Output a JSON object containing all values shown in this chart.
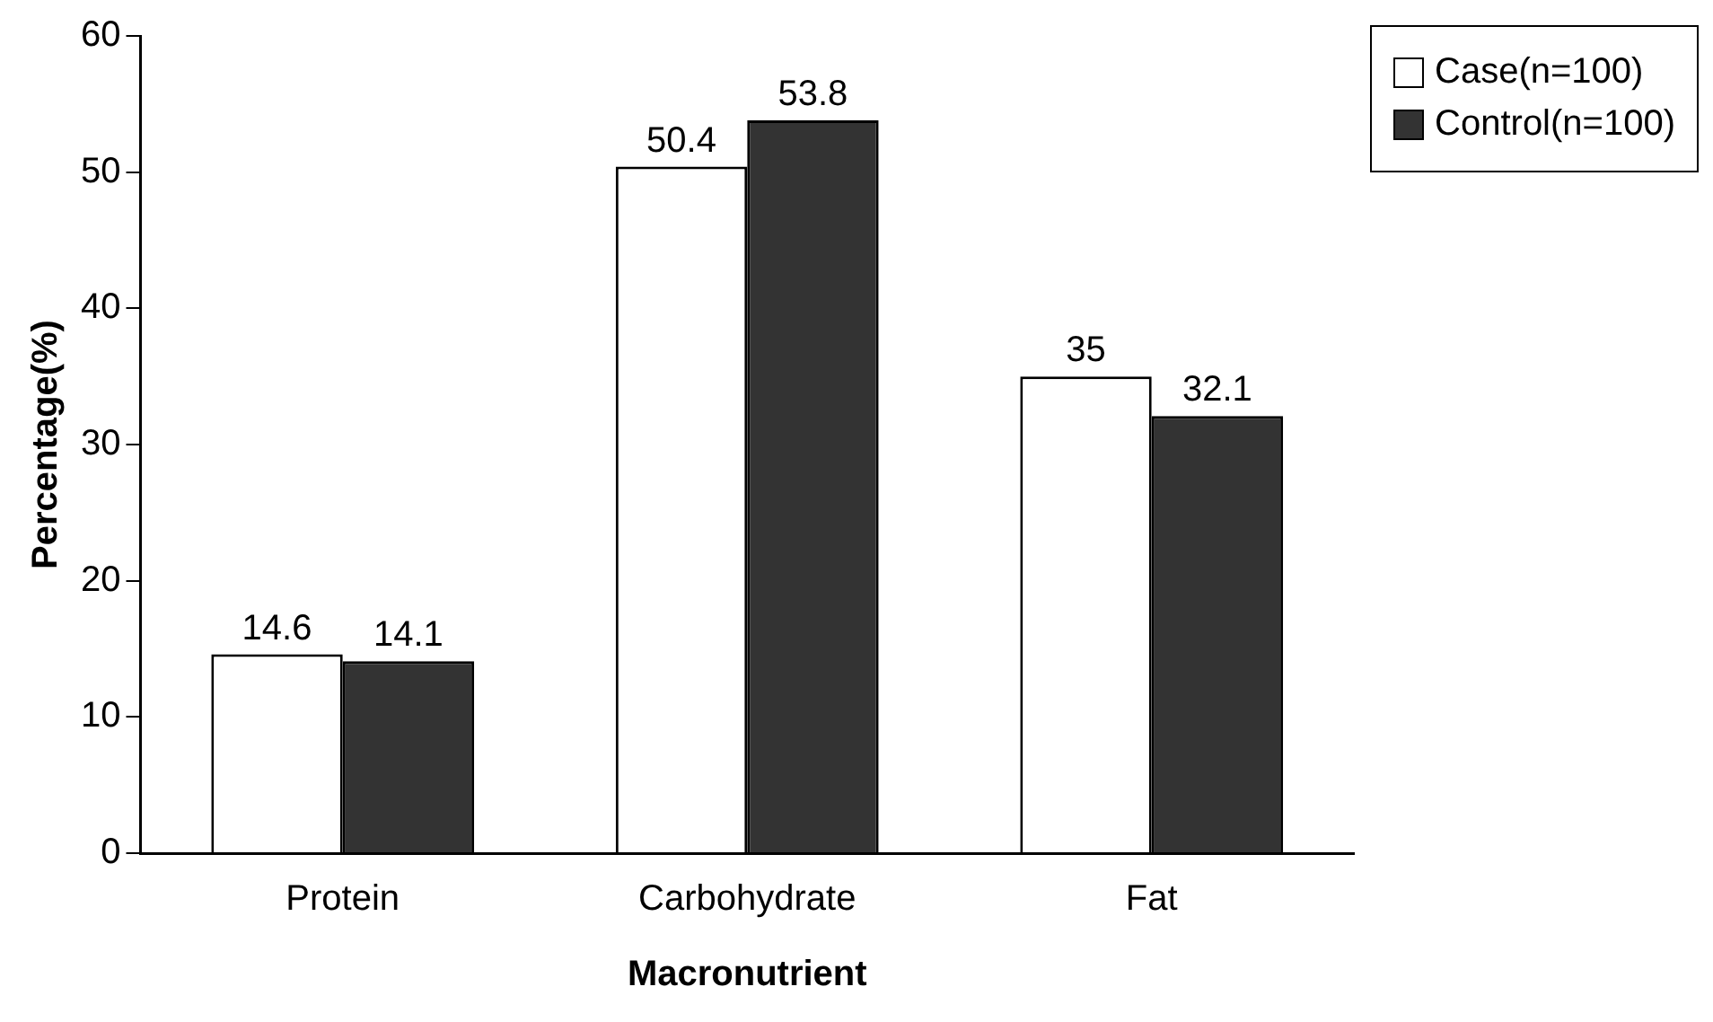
{
  "chart_data": {
    "type": "bar",
    "xlabel": "Macronutrient",
    "ylabel": "Percentage(%)",
    "categories": [
      "Protein",
      "Carbohydrate",
      "Fat"
    ],
    "series": [
      {
        "name": "Case(n=100)",
        "color": "#ffffff",
        "values": [
          14.6,
          50.4,
          35
        ]
      },
      {
        "name": "Control(n=100)",
        "color": "#333333",
        "values": [
          14.1,
          53.8,
          32.1
        ]
      }
    ],
    "ylim": [
      0,
      60
    ],
    "yticks": [
      0,
      10,
      20,
      30,
      40,
      50,
      60
    ],
    "grid": false,
    "legend": "top right",
    "data_labels": true
  }
}
